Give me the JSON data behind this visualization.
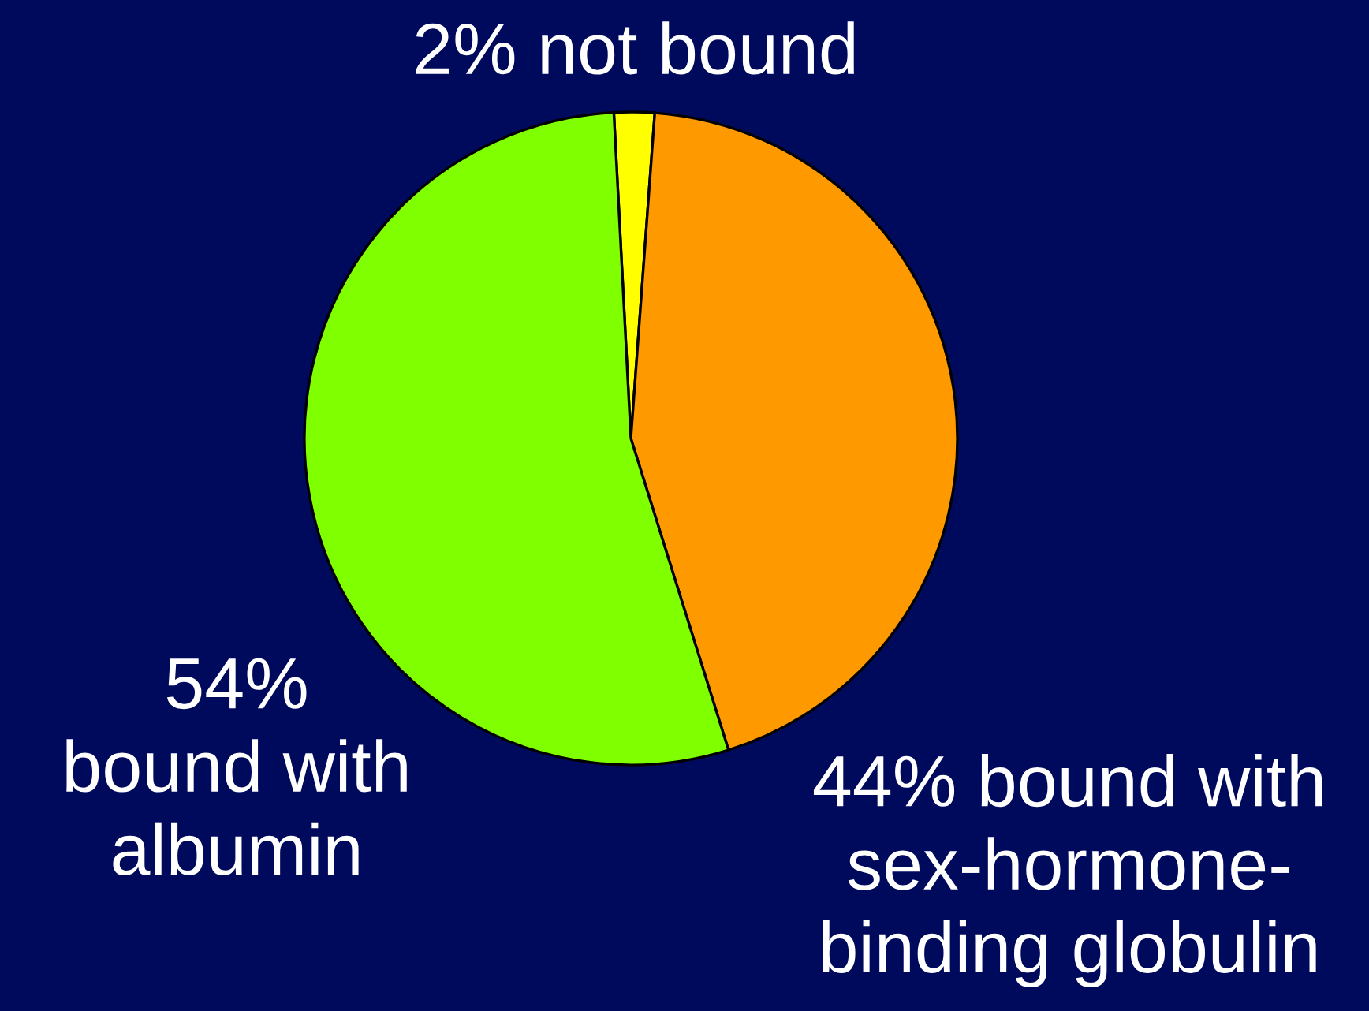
{
  "chart_data": {
    "type": "pie",
    "categories": [
      "2% not bound",
      "44% bound with\nsex-hormone-\nbinding globulin",
      "54%\nbound with\nalbumin"
    ],
    "values": [
      2,
      44,
      54
    ],
    "colors": [
      "#ffff00",
      "#ff9900",
      "#80ff00"
    ]
  }
}
